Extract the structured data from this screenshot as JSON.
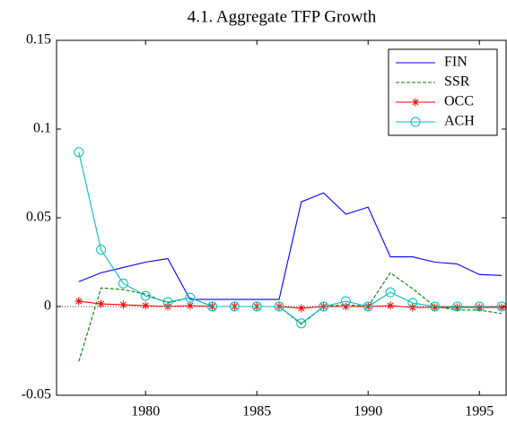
{
  "chart_data": {
    "type": "line",
    "title": "4.1. Aggregate TFP Growth",
    "x": [
      1977,
      1978,
      1979,
      1980,
      1981,
      1982,
      1983,
      1984,
      1985,
      1986,
      1987,
      1988,
      1989,
      1990,
      1991,
      1992,
      1993,
      1994,
      1995,
      1996
    ],
    "series": [
      {
        "name": "FIN",
        "color": "#0000ff",
        "dash": "solid",
        "marker": "none",
        "values": [
          0.014,
          0.019,
          0.022,
          0.025,
          0.027,
          0.004,
          0.004,
          0.004,
          0.004,
          0.004,
          0.059,
          0.064,
          0.052,
          0.056,
          0.028,
          0.028,
          0.025,
          0.024,
          0.018,
          0.0175
        ]
      },
      {
        "name": "SSR",
        "color": "#008000",
        "dash": "dashed",
        "marker": "none",
        "values": [
          -0.031,
          0.0105,
          0.0095,
          0.007,
          0.002,
          0.005,
          0,
          0,
          0,
          0,
          -0.01,
          0,
          0.001,
          0,
          0.019,
          0.01,
          0,
          -0.002,
          -0.002,
          -0.004
        ]
      },
      {
        "name": "OCC",
        "color": "#ff0000",
        "dash": "solid",
        "marker": "asterisk",
        "values": [
          0.003,
          0.0015,
          0.001,
          0.0005,
          0,
          0.0005,
          0,
          0,
          0,
          0,
          -0.001,
          0,
          0,
          0,
          0.0005,
          -0.0005,
          -0.0005,
          -0.0005,
          -0.0005,
          -0.0005
        ]
      },
      {
        "name": "ACH",
        "color": "#00bfbf",
        "dash": "solid",
        "marker": "circle",
        "values": [
          0.087,
          0.032,
          0.013,
          0.006,
          0.0025,
          0.005,
          0,
          0,
          0,
          0,
          -0.0095,
          0,
          0.003,
          0,
          0.008,
          0.002,
          0,
          0,
          0,
          0
        ]
      }
    ],
    "xlim": [
      1976,
      1996.2
    ],
    "xticks": [
      1980,
      1985,
      1990,
      1995
    ],
    "ylim": [
      -0.05,
      0.15
    ],
    "yticks": [
      -0.05,
      0,
      0.05,
      0.1,
      0.15
    ],
    "legend": "upper right",
    "grid": false
  }
}
